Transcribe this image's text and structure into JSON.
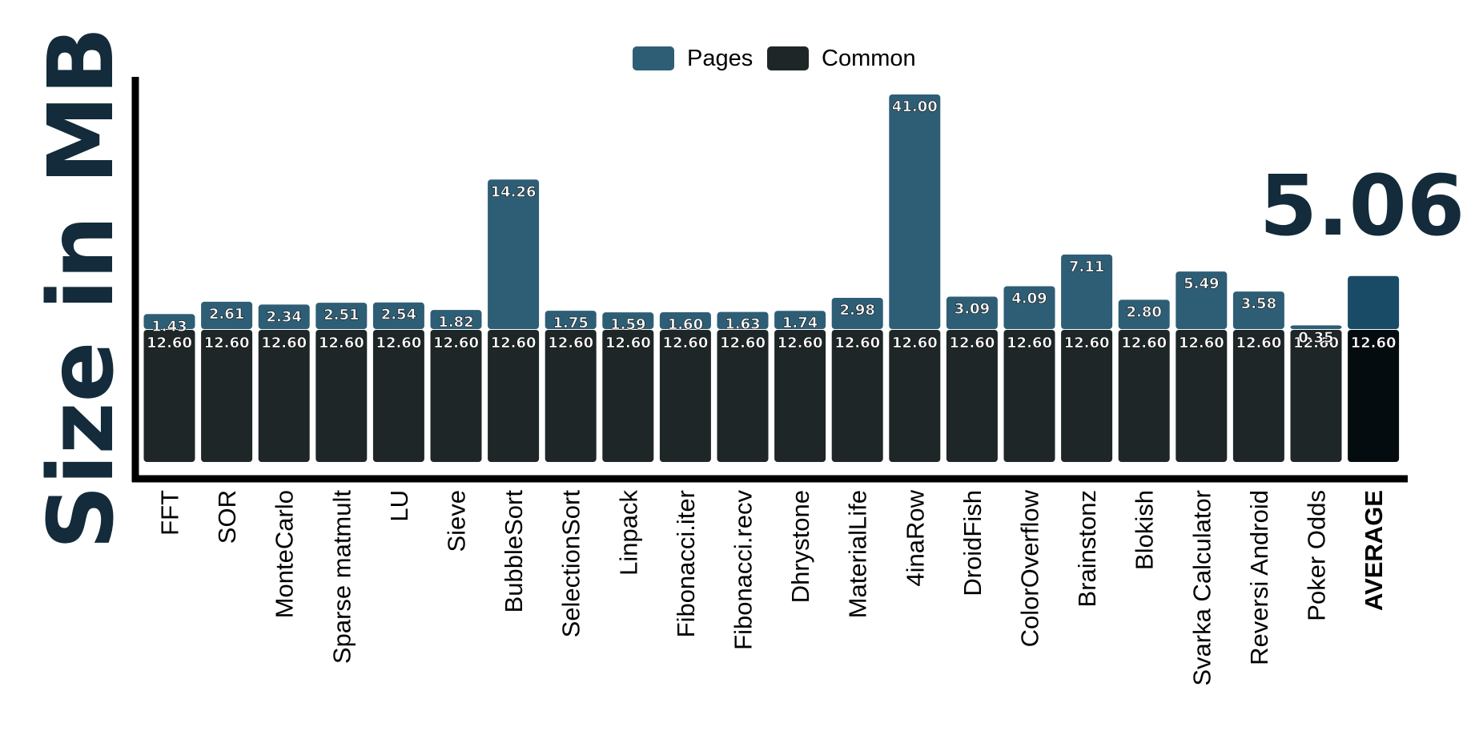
{
  "chart_data": {
    "type": "bar",
    "stacked": true,
    "ylabel": "Size in MB",
    "categories": [
      "FFT",
      "SOR",
      "MonteCarlo",
      "Sparse matmult",
      "LU",
      "Sieve",
      "BubbleSort",
      "SelectionSort",
      "Linpack",
      "Fibonacci.iter",
      "Fibonacci.recv",
      "Dhrystone",
      "MaterialLife",
      "4inaRow",
      "DroidFish",
      "ColorOverflow",
      "Brainstonz",
      "Blokish",
      "Svarka Calculator",
      "Reversi Android",
      "Poker Odds",
      "AVERAGE"
    ],
    "series": [
      {
        "name": "Common",
        "color": "#1e2628",
        "highlight_color": "#050c10",
        "values": [
          12.6,
          12.6,
          12.6,
          12.6,
          12.6,
          12.6,
          12.6,
          12.6,
          12.6,
          12.6,
          12.6,
          12.6,
          12.6,
          12.6,
          12.6,
          12.6,
          12.6,
          12.6,
          12.6,
          12.6,
          12.6,
          12.6
        ],
        "labels": [
          "12.60",
          "12.60",
          "12.60",
          "12.60",
          "12.60",
          "12.60",
          "12.60",
          "12.60",
          "12.60",
          "12.60",
          "12.60",
          "12.60",
          "12.60",
          "12.60",
          "12.60",
          "12.60",
          "12.60",
          "12.60",
          "12.60",
          "12.60",
          "12.60",
          "12.60"
        ]
      },
      {
        "name": "Pages",
        "color": "#2e5e76",
        "highlight_color": "#1a4b66",
        "values": [
          1.43,
          2.61,
          2.34,
          2.51,
          2.54,
          1.82,
          14.26,
          1.75,
          1.59,
          1.6,
          1.63,
          1.74,
          2.98,
          41.0,
          3.09,
          4.09,
          7.11,
          2.8,
          5.49,
          3.58,
          0.35,
          5.06
        ],
        "labels": [
          "1.43",
          "2.61",
          "2.34",
          "2.51",
          "2.54",
          "1.82",
          "14.26",
          "1.75",
          "1.59",
          "1.60",
          "1.63",
          "1.74",
          "2.98",
          "41.00",
          "3.09",
          "4.09",
          "7.11",
          "2.80",
          "5.49",
          "3.58",
          "0.35",
          ""
        ]
      }
    ],
    "highlight_category": "AVERAGE",
    "highlight_value_label": "5.06",
    "legend": {
      "position": "top-center",
      "entries": [
        "Pages",
        "Common"
      ]
    },
    "title_color": "#132b3a",
    "axis_color": "#000000",
    "grid": false
  }
}
